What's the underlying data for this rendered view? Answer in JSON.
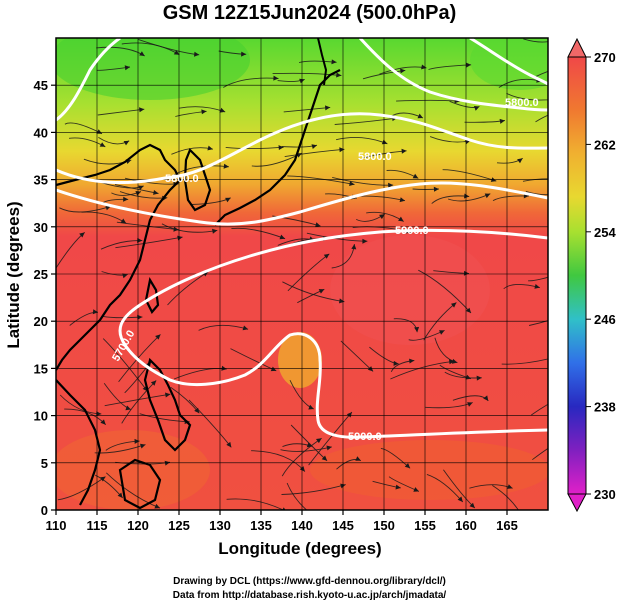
{
  "title": "GSM 12Z15Jun2024 (500.0hPa)",
  "credits": {
    "line1": "Drawing by DCL (https://www.gfd-dennou.org/library/dcl/)",
    "line2": "Data from http://database.rish.kyoto-u.ac.jp/arch/jmadata/"
  },
  "map": {
    "x_axis_label": "Longitude (degrees)",
    "y_axis_label": "Latitude  (degrees)",
    "x_range": [
      110,
      170
    ],
    "y_range": [
      0,
      50
    ],
    "x_ticks": [
      "110",
      "115",
      "120",
      "125",
      "130",
      "135",
      "140",
      "145",
      "150",
      "155",
      "160",
      "165"
    ],
    "y_ticks": [
      "0",
      "5",
      "10",
      "15",
      "20",
      "25",
      "30",
      "35",
      "40",
      "45"
    ],
    "grid": true,
    "contour_labels": [
      "5800.0",
      "5900.0",
      "5700.0",
      "5900.0",
      "5800.0",
      "5800.0"
    ]
  },
  "colorbar": {
    "ticks": [
      "270",
      "262",
      "254",
      "246",
      "238",
      "230"
    ],
    "colors": [
      "#f04848",
      "#f07830",
      "#f0b030",
      "#e8d830",
      "#a8e030",
      "#40c840",
      "#30c0c8",
      "#3070e8",
      "#2828c0",
      "#8020c0",
      "#e020c8"
    ]
  }
}
